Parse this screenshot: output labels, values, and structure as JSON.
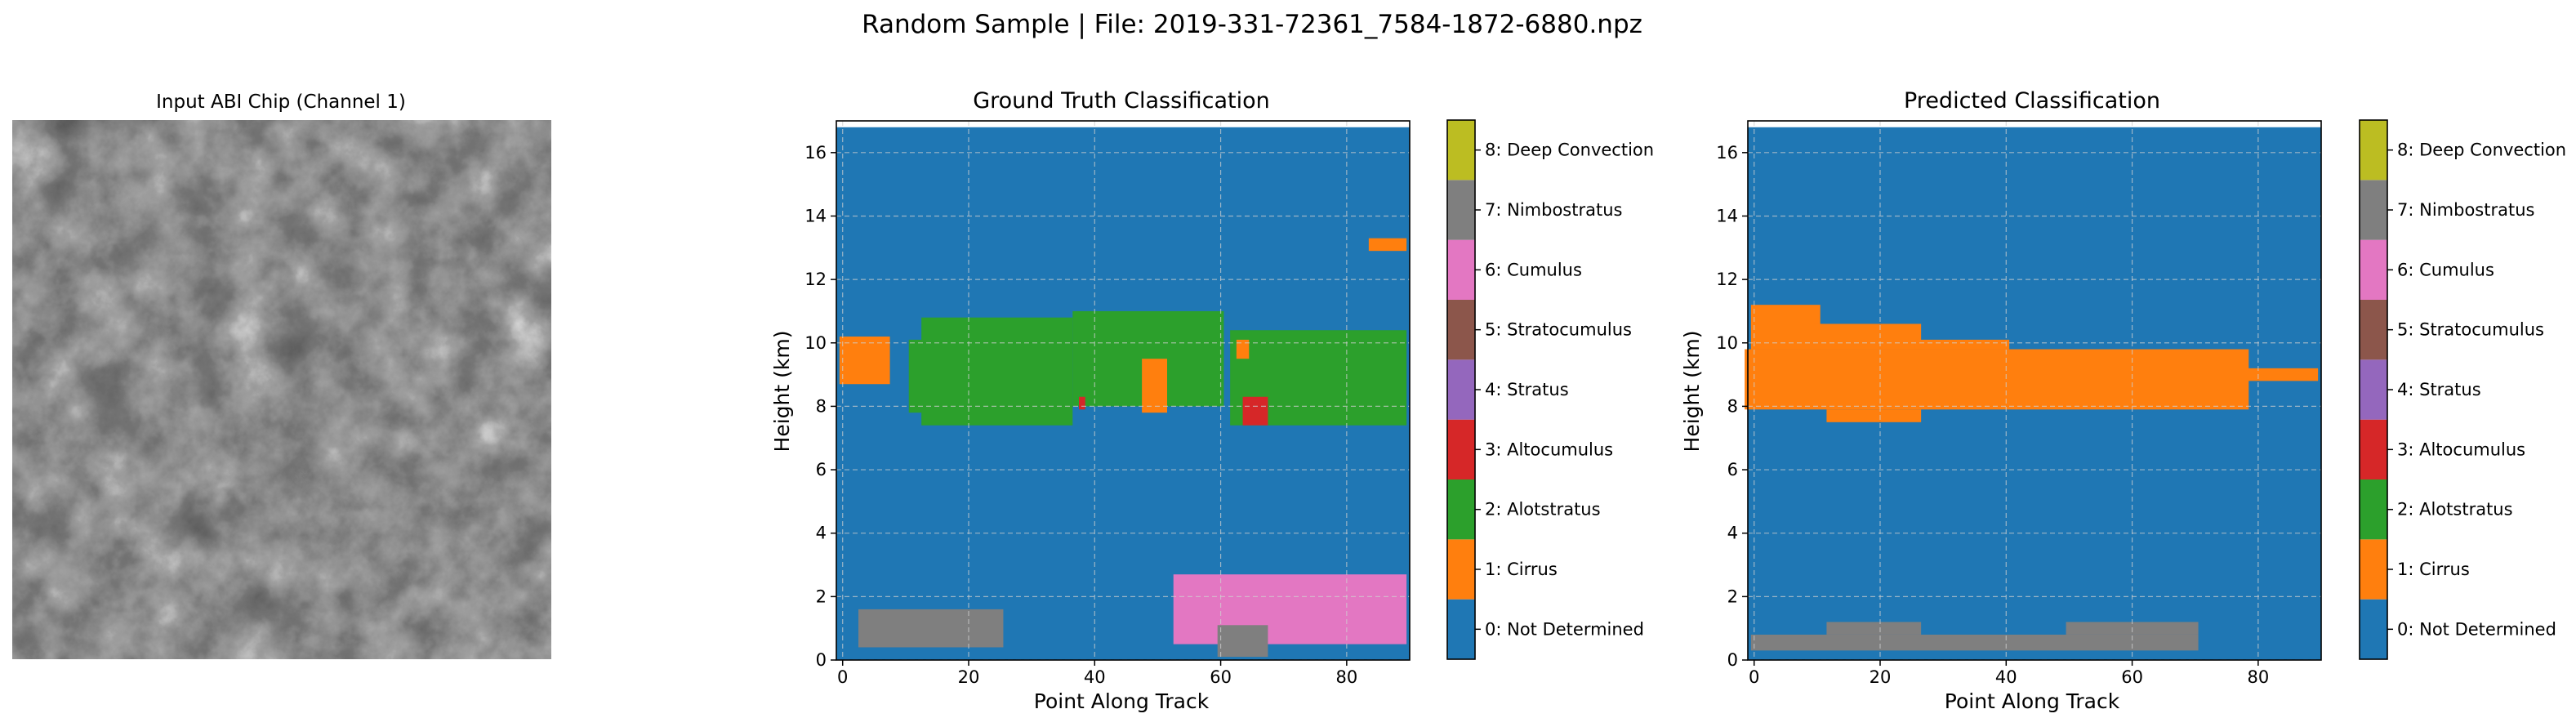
{
  "figure": {
    "suptitle": "Random Sample | File: 2019-331-72361_7584-1872-6880.npz"
  },
  "colors": {
    "background": "#ffffff",
    "classes": [
      "#1f77b4",
      "#ff7f0e",
      "#2ca02c",
      "#d62728",
      "#9467bd",
      "#8c564b",
      "#e377c2",
      "#7f7f7f",
      "#bcbd22",
      "#17becf"
    ]
  },
  "chart_data": [
    {
      "type": "image",
      "title": "Input ABI Chip (Channel 1)",
      "colormap": "gray"
    },
    {
      "type": "heatmap",
      "title": "Ground Truth Classification",
      "xlabel": "Point Along Track",
      "ylabel": "Height (km)",
      "xlim": [
        -1,
        90
      ],
      "ylim": [
        0,
        17
      ],
      "xticks": [
        0,
        20,
        40,
        60,
        80
      ],
      "yticks": [
        0,
        2,
        4,
        6,
        8,
        10,
        12,
        14,
        16
      ],
      "grid": true,
      "background_class": 0,
      "regions": [
        {
          "class": 2,
          "x": [
            13,
            36
          ],
          "y": [
            7.4,
            10.8
          ]
        },
        {
          "class": 2,
          "x": [
            11,
            20
          ],
          "y": [
            7.8,
            10.1
          ]
        },
        {
          "class": 2,
          "x": [
            37,
            60
          ],
          "y": [
            8.0,
            11.0
          ]
        },
        {
          "class": 2,
          "x": [
            62,
            89
          ],
          "y": [
            7.4,
            10.4
          ]
        },
        {
          "class": 1,
          "x": [
            0,
            7
          ],
          "y": [
            8.7,
            10.2
          ]
        },
        {
          "class": 1,
          "x": [
            48,
            51
          ],
          "y": [
            7.8,
            9.5
          ]
        },
        {
          "class": 1,
          "x": [
            63,
            64
          ],
          "y": [
            9.5,
            10.1
          ]
        },
        {
          "class": 1,
          "x": [
            84,
            89
          ],
          "y": [
            12.9,
            13.3
          ]
        },
        {
          "class": 3,
          "x": [
            38,
            38
          ],
          "y": [
            7.9,
            8.3
          ]
        },
        {
          "class": 3,
          "x": [
            64,
            67
          ],
          "y": [
            7.4,
            8.3
          ]
        },
        {
          "class": 6,
          "x": [
            53,
            89
          ],
          "y": [
            0.5,
            2.7
          ]
        },
        {
          "class": 7,
          "x": [
            3,
            25
          ],
          "y": [
            0.4,
            1.6
          ]
        },
        {
          "class": 7,
          "x": [
            60,
            67
          ],
          "y": [
            0.1,
            1.1
          ]
        }
      ],
      "colorbar": {
        "labels": [
          "0: Not Determined",
          "1: Cirrus",
          "2: Alotstratus",
          "3: Altocumulus",
          "4: Stratus",
          "5: Stratocumulus",
          "6: Cumulus",
          "7: Nimbostratus",
          "8: Deep Convection"
        ]
      }
    },
    {
      "type": "heatmap",
      "title": "Predicted Classification",
      "xlabel": "Point Along Track",
      "ylabel": "Height (km)",
      "xlim": [
        -1,
        90
      ],
      "ylim": [
        0,
        17
      ],
      "xticks": [
        0,
        20,
        40,
        60,
        80
      ],
      "yticks": [
        0,
        2,
        4,
        6,
        8,
        10,
        12,
        14,
        16
      ],
      "grid": true,
      "background_class": 0,
      "regions": [
        {
          "class": 1,
          "x": [
            -1,
            78
          ],
          "y": [
            7.9,
            9.8
          ]
        },
        {
          "class": 1,
          "x": [
            0,
            10
          ],
          "y": [
            9.8,
            11.2
          ]
        },
        {
          "class": 1,
          "x": [
            10,
            26
          ],
          "y": [
            9.8,
            10.6
          ]
        },
        {
          "class": 1,
          "x": [
            26,
            40
          ],
          "y": [
            9.8,
            10.1
          ]
        },
        {
          "class": 1,
          "x": [
            12,
            26
          ],
          "y": [
            7.5,
            7.9
          ]
        },
        {
          "class": 1,
          "x": [
            78,
            89
          ],
          "y": [
            8.8,
            9.2
          ]
        },
        {
          "class": 7,
          "x": [
            0,
            70
          ],
          "y": [
            0.3,
            0.8
          ]
        },
        {
          "class": 7,
          "x": [
            12,
            26
          ],
          "y": [
            0.8,
            1.2
          ]
        },
        {
          "class": 7,
          "x": [
            50,
            70
          ],
          "y": [
            0.8,
            1.2
          ]
        }
      ],
      "colorbar": {
        "labels": [
          "0: Not Determined",
          "1: Cirrus",
          "2: Alotstratus",
          "3: Altocumulus",
          "4: Stratus",
          "5: Stratocumulus",
          "6: Cumulus",
          "7: Nimbostratus",
          "8: Deep Convection"
        ]
      }
    }
  ]
}
